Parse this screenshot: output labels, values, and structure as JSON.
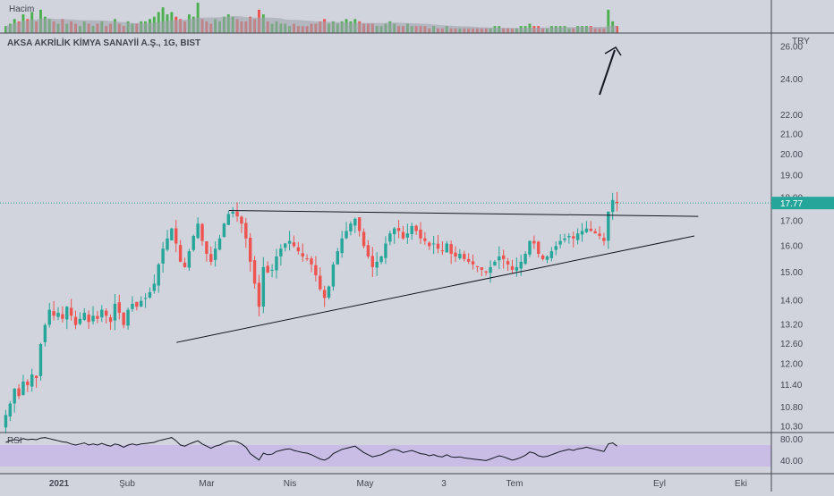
{
  "volume_label": "Hacim",
  "title": "AKSA AKRİLİK KİMYA SANAYİİ A.Ş., 1G, BIST",
  "currency": "TRY",
  "rsi_label": "RSI",
  "price_tag": "17.77",
  "colors": {
    "up": "#26a69a",
    "down": "#ef5350",
    "vol_up": "#4caf50",
    "vol_down": "#ef5350",
    "rsi_band": "#c9bde6",
    "rsi_line": "#131722",
    "tag": "#26a69a"
  },
  "chart_data": {
    "type": "candlestick",
    "title": "AKSA AKRİLİK KİMYA SANAYİİ A.Ş., 1G, BIST",
    "y_scale": "log",
    "ylim": [
      10.2,
      26.6
    ],
    "y_ticks": [
      "26.00",
      "24.00",
      "22.00",
      "21.00",
      "20.00",
      "19.00",
      "18.00",
      "17.00",
      "16.00",
      "15.00",
      "14.00",
      "13.20",
      "12.60",
      "12.00",
      "11.40",
      "10.80",
      "10.30"
    ],
    "x_ticks": [
      "2021",
      "Şub",
      "Mar",
      "Nis",
      "May",
      "3",
      "Tem",
      "Eyl",
      "Eki"
    ],
    "last_price": 17.77,
    "close_series": [
      10.6,
      10.9,
      11.3,
      11.1,
      11.5,
      11.4,
      11.7,
      11.6,
      12.6,
      13.2,
      13.7,
      13.5,
      13.6,
      13.4,
      13.8,
      13.5,
      13.2,
      13.4,
      13.6,
      13.3,
      13.5,
      13.4,
      13.7,
      13.5,
      13.3,
      13.9,
      13.6,
      13.2,
      13.7,
      13.9,
      13.8,
      14.0,
      14.1,
      14.3,
      14.6,
      15.3,
      15.9,
      16.3,
      16.7,
      16.1,
      15.4,
      15.2,
      15.8,
      16.4,
      16.9,
      16.2,
      15.7,
      15.4,
      15.9,
      16.3,
      16.9,
      17.3,
      17.4,
      17.2,
      16.9,
      16.3,
      15.4,
      14.6,
      13.8,
      15.2,
      15.0,
      15.1,
      15.6,
      15.9,
      16.1,
      16.2,
      16.0,
      15.8,
      15.6,
      15.5,
      15.3,
      14.9,
      14.4,
      14.1,
      14.5,
      15.3,
      15.8,
      16.3,
      16.6,
      16.9,
      17.1,
      16.6,
      16.0,
      15.6,
      15.2,
      15.4,
      15.6,
      16.1,
      16.5,
      16.7,
      16.6,
      16.3,
      16.5,
      16.8,
      16.6,
      16.3,
      16.2,
      16.0,
      16.1,
      15.9,
      15.8,
      16.1,
      15.7,
      15.6,
      15.7,
      15.5,
      15.4,
      15.3,
      15.2,
      15.1,
      15.0,
      15.2,
      15.4,
      15.6,
      15.5,
      15.3,
      15.1,
      15.2,
      15.4,
      15.7,
      16.2,
      16.1,
      15.7,
      15.5,
      15.6,
      15.8,
      16.0,
      16.2,
      16.3,
      16.4,
      16.3,
      16.5,
      16.6,
      16.7,
      16.6,
      16.5,
      16.4,
      16.2,
      17.4,
      17.9,
      17.77
    ],
    "volume_series": [
      0.3,
      0.4,
      0.6,
      0.5,
      0.8,
      0.6,
      0.9,
      0.5,
      1.0,
      0.7,
      0.6,
      0.5,
      0.4,
      0.6,
      0.4,
      0.5,
      0.4,
      0.3,
      0.5,
      0.4,
      0.3,
      0.4,
      0.5,
      0.3,
      0.4,
      0.6,
      0.4,
      0.3,
      0.5,
      0.4,
      0.4,
      0.5,
      0.5,
      0.6,
      0.7,
      0.9,
      1.1,
      0.8,
      0.9,
      0.7,
      0.6,
      0.5,
      0.8,
      0.7,
      1.3,
      0.6,
      0.5,
      0.4,
      0.6,
      0.5,
      0.7,
      0.8,
      0.7,
      0.6,
      0.5,
      0.5,
      0.7,
      0.6,
      1.0,
      0.8,
      0.5,
      0.4,
      0.5,
      0.4,
      0.4,
      0.3,
      0.4,
      0.3,
      0.3,
      0.3,
      0.4,
      0.4,
      0.5,
      0.6,
      0.4,
      0.5,
      0.4,
      0.5,
      0.6,
      0.5,
      0.6,
      0.5,
      0.4,
      0.4,
      0.4,
      0.3,
      0.3,
      0.4,
      0.5,
      0.4,
      0.3,
      0.3,
      0.4,
      0.3,
      0.3,
      0.3,
      0.3,
      0.2,
      0.3,
      0.2,
      0.2,
      0.3,
      0.2,
      0.2,
      0.2,
      0.2,
      0.2,
      0.2,
      0.2,
      0.2,
      0.2,
      0.2,
      0.3,
      0.3,
      0.2,
      0.2,
      0.2,
      0.2,
      0.3,
      0.3,
      0.4,
      0.3,
      0.3,
      0.2,
      0.2,
      0.3,
      0.3,
      0.3,
      0.3,
      0.2,
      0.2,
      0.3,
      0.3,
      0.3,
      0.3,
      0.2,
      0.2,
      0.2,
      1.0,
      0.5,
      0.3
    ],
    "rsi": {
      "ylim": [
        20,
        90
      ],
      "y_ticks": [
        "80.00",
        "40.00"
      ],
      "band": [
        30,
        70
      ],
      "values": [
        75,
        78,
        80,
        79,
        82,
        80,
        81,
        80,
        83,
        84,
        82,
        80,
        78,
        76,
        75,
        72,
        70,
        72,
        74,
        70,
        72,
        70,
        73,
        70,
        68,
        72,
        70,
        66,
        70,
        72,
        70,
        72,
        73,
        74,
        75,
        78,
        80,
        82,
        84,
        78,
        70,
        68,
        72,
        75,
        78,
        72,
        68,
        64,
        68,
        70,
        74,
        77,
        78,
        76,
        72,
        66,
        54,
        48,
        42,
        55,
        52,
        53,
        58,
        60,
        62,
        63,
        60,
        58,
        56,
        55,
        52,
        48,
        44,
        42,
        46,
        54,
        58,
        62,
        64,
        66,
        68,
        62,
        56,
        52,
        48,
        50,
        52,
        56,
        60,
        62,
        60,
        56,
        58,
        60,
        57,
        54,
        53,
        50,
        52,
        49,
        48,
        52,
        48,
        47,
        48,
        46,
        45,
        44,
        43,
        42,
        41,
        44,
        47,
        50,
        48,
        45,
        42,
        44,
        47,
        51,
        57,
        55,
        50,
        48,
        49,
        52,
        55,
        58,
        60,
        62,
        60,
        63,
        64,
        66,
        64,
        62,
        60,
        58,
        72,
        74,
        68
      ]
    },
    "trendlines": [
      {
        "name": "resistance",
        "from": [
          0.295,
          17.45
        ],
        "to": [
          0.905,
          17.2
        ]
      },
      {
        "name": "support",
        "from": [
          0.227,
          12.65
        ],
        "to": [
          0.9,
          16.4
        ]
      }
    ]
  }
}
